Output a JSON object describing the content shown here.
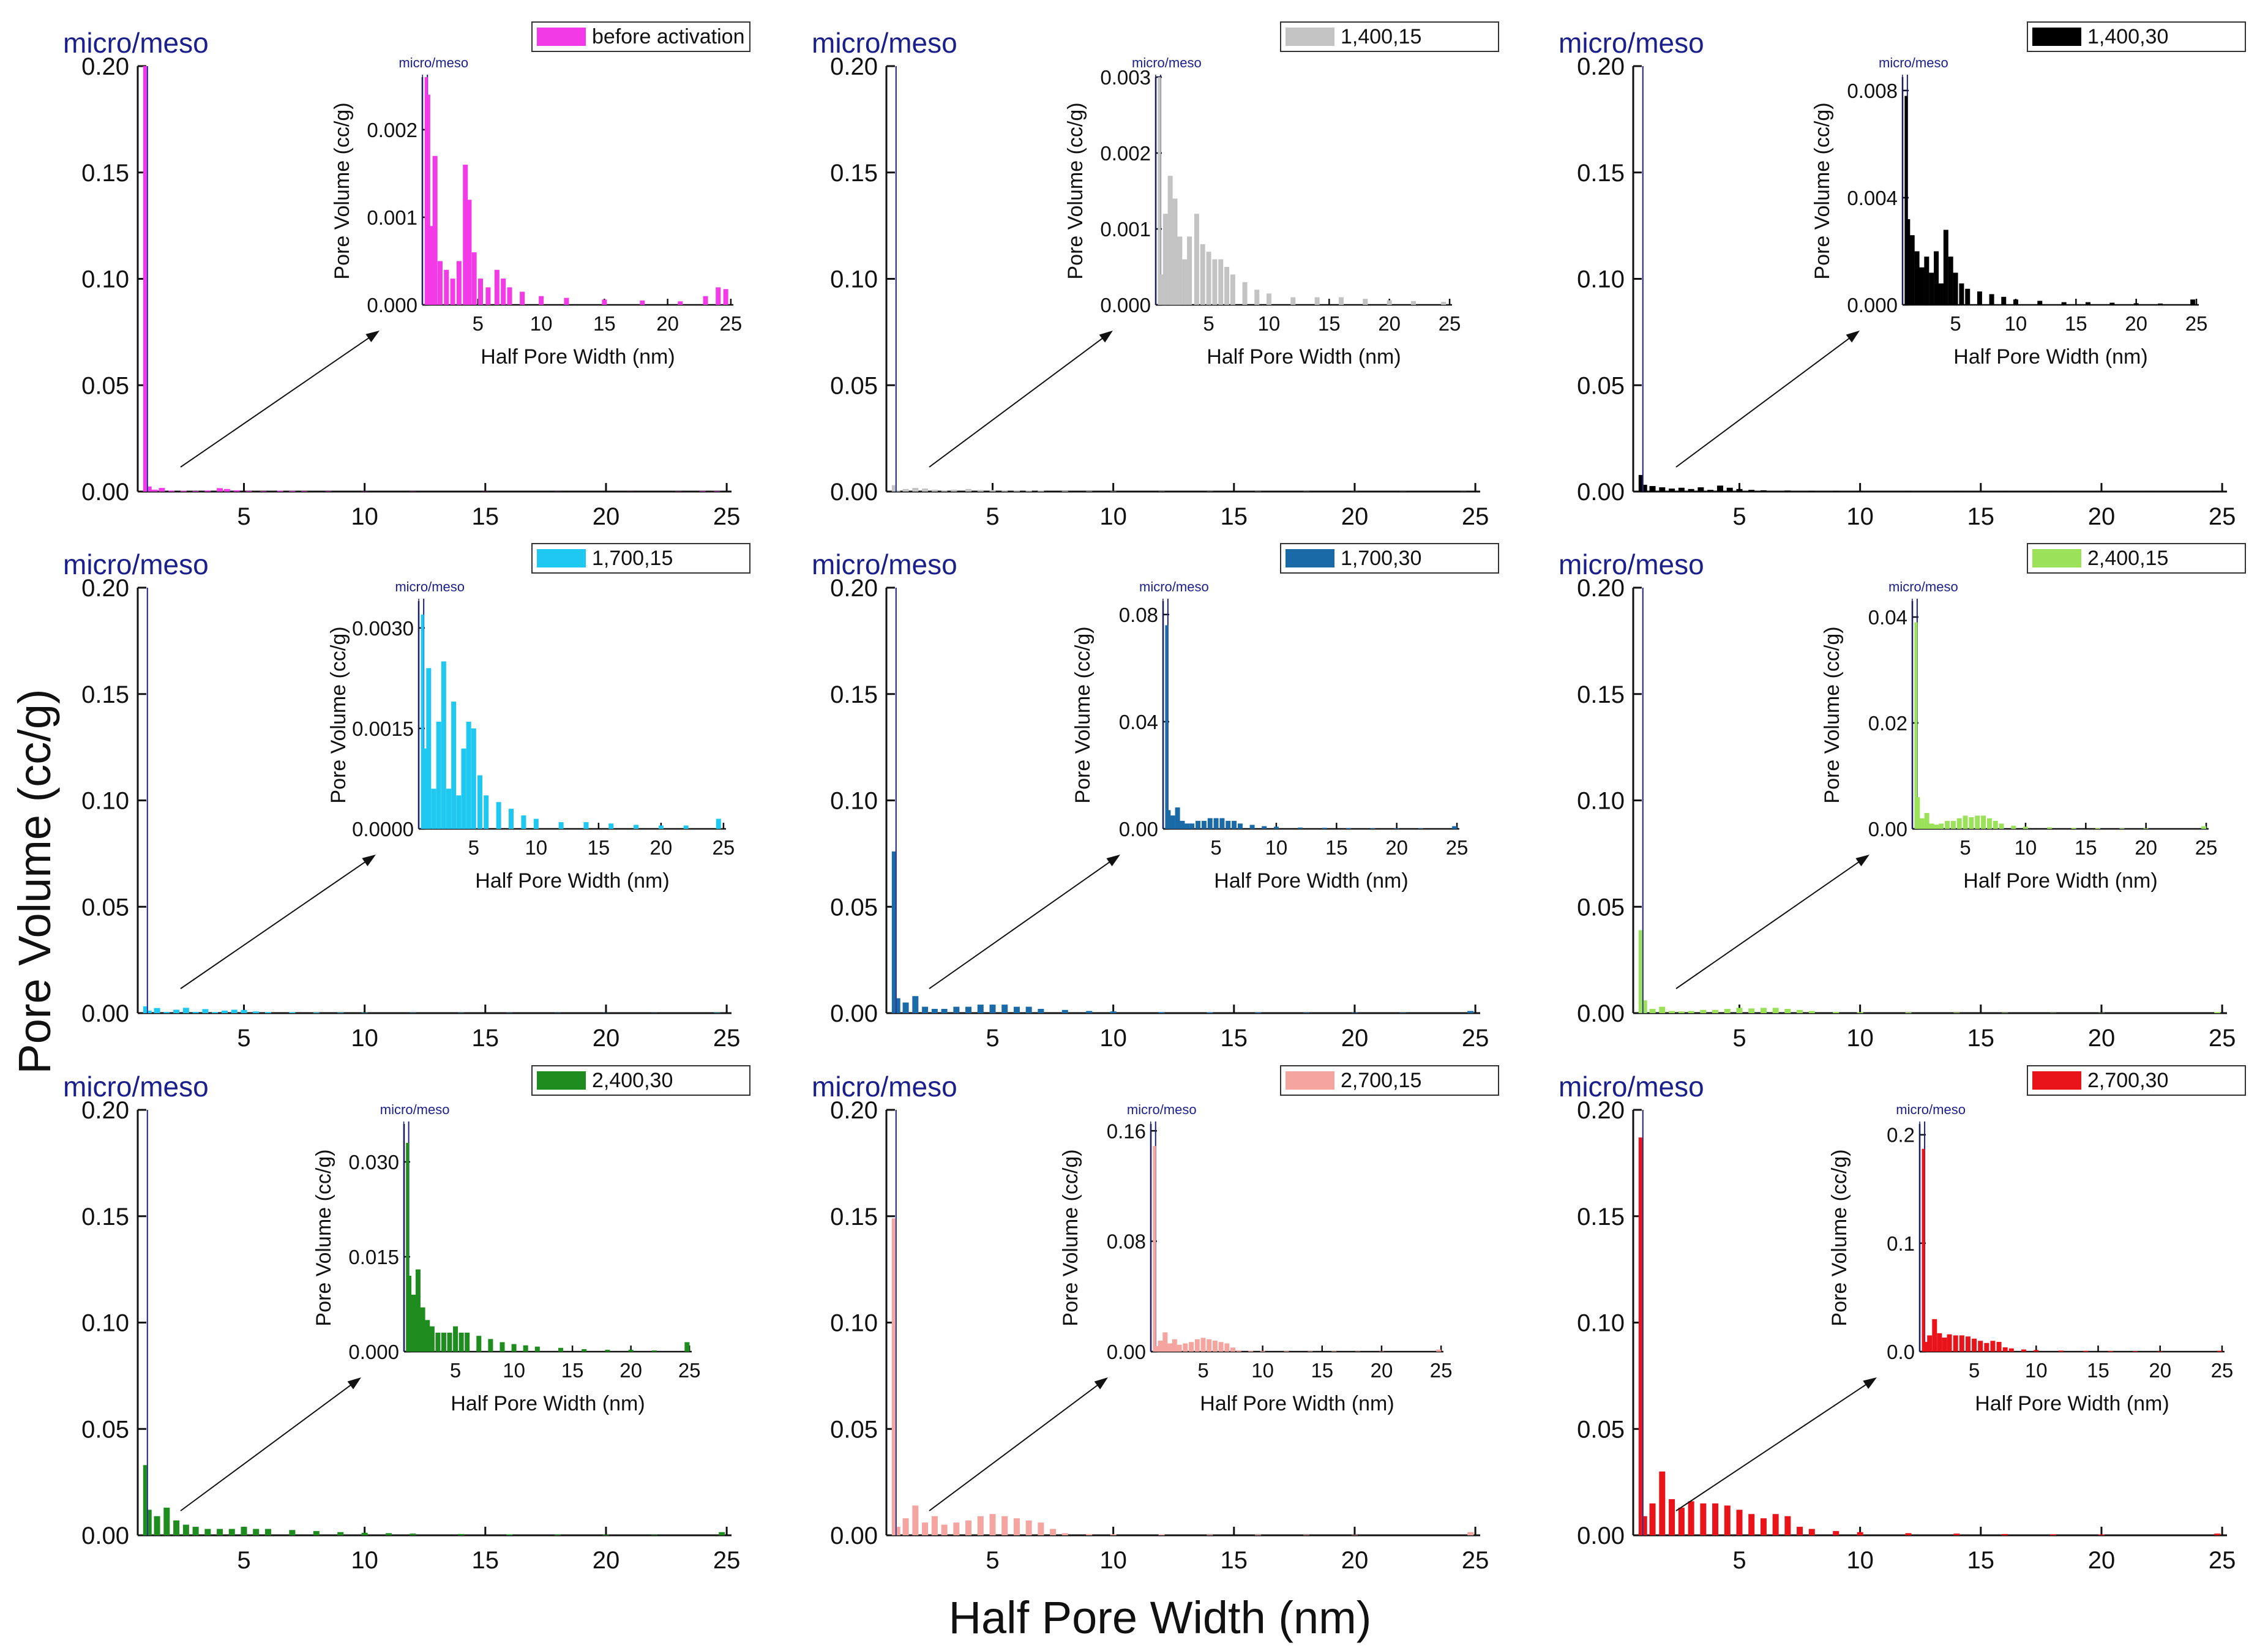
{
  "figure": {
    "ylabel": "Pore Volume (cc/g)",
    "xlabel": "Half Pore Width (nm)",
    "inset_ylabel": "Pore Volume (cc/g)",
    "inset_xlabel": "Half Pore Width (nm)",
    "marker_label": "micro/meso",
    "marker_color": "#1a1f8c",
    "axis_color": "#111111"
  },
  "chart_data": [
    {
      "type": "bar",
      "legend": "before activation",
      "color": "#f23ae6",
      "x": [
        0.9,
        1.1,
        1.3,
        1.6,
        2.0,
        2.5,
        3.0,
        3.5,
        4.0,
        4.3,
        4.7,
        5.2,
        5.8,
        6.5,
        7.0,
        7.5,
        8.5,
        10.0,
        12.0,
        15.0,
        18.0,
        21.0,
        23.0,
        24.0,
        24.6
      ],
      "values": [
        0.2,
        0.0024,
        0.0009,
        0.0017,
        0.0005,
        0.0004,
        0.0003,
        0.0005,
        0.0016,
        0.0012,
        0.0006,
        0.0003,
        0.0002,
        0.0004,
        0.0003,
        0.0002,
        0.00015,
        0.0001,
        8e-05,
        6e-05,
        5e-05,
        4e-05,
        0.0001,
        0.0002,
        0.00018
      ],
      "ylim": [
        0,
        0.2
      ],
      "yticks": [
        "0.00",
        "0.05",
        "0.10",
        "0.15",
        "0.20"
      ],
      "inset": {
        "ylim": [
          0,
          0.0026
        ],
        "yticks": [
          "0.000",
          "0.001",
          "0.002"
        ],
        "ytick_values": [
          0,
          0.001,
          0.002
        ]
      }
    },
    {
      "type": "bar",
      "legend": "1,400,15",
      "color": "#c3c3c3",
      "x": [
        0.9,
        1.1,
        1.4,
        1.8,
        2.2,
        2.6,
        3.0,
        3.4,
        4.0,
        4.5,
        5.0,
        5.5,
        6.0,
        6.5,
        7.0,
        8.0,
        9.0,
        10.0,
        12.0,
        14.0,
        16.0,
        18.0,
        20.0,
        22.0,
        24.5
      ],
      "values": [
        0.003,
        0.0004,
        0.0012,
        0.0017,
        0.0014,
        0.0009,
        0.0006,
        0.0009,
        0.0012,
        0.0008,
        0.0007,
        0.0006,
        0.0006,
        0.0005,
        0.0004,
        0.0003,
        0.0002,
        0.00015,
        0.0001,
        0.0001,
        0.0001,
        8e-05,
        6e-05,
        5e-05,
        4e-05
      ],
      "ylim": [
        0,
        0.2
      ],
      "yticks": [
        "0.00",
        "0.05",
        "0.10",
        "0.15",
        "0.20"
      ],
      "inset": {
        "ylim": [
          0,
          0.003
        ],
        "yticks": [
          "0.000",
          "0.001",
          "0.002",
          "0.003"
        ],
        "ytick_values": [
          0,
          0.001,
          0.002,
          0.003
        ]
      }
    },
    {
      "type": "bar",
      "legend": "1,400,30",
      "color": "#000000",
      "x": [
        0.9,
        1.1,
        1.4,
        1.8,
        2.2,
        2.6,
        3.0,
        3.4,
        3.8,
        4.2,
        4.6,
        5.0,
        5.5,
        6.0,
        7.0,
        8.0,
        9.0,
        10.0,
        12.0,
        14.0,
        16.0,
        18.0,
        20.0,
        22.0,
        24.7
      ],
      "values": [
        0.0078,
        0.0032,
        0.0026,
        0.002,
        0.0014,
        0.0018,
        0.0012,
        0.002,
        0.0008,
        0.0028,
        0.0018,
        0.0012,
        0.0008,
        0.0006,
        0.0005,
        0.0004,
        0.0003,
        0.0002,
        0.00015,
        0.0001,
        0.0001,
        8e-05,
        6e-05,
        5e-05,
        0.0002
      ],
      "ylim": [
        0,
        0.2
      ],
      "yticks": [
        "0.00",
        "0.05",
        "0.10",
        "0.15",
        "0.20"
      ],
      "inset": {
        "ylim": [
          0,
          0.0085
        ],
        "yticks": [
          "0.000",
          "0.004",
          "0.008"
        ],
        "ytick_values": [
          0,
          0.004,
          0.008
        ]
      }
    },
    {
      "type": "bar",
      "legend": "1,700,15",
      "color": "#1ec8f0",
      "x": [
        0.9,
        1.1,
        1.4,
        1.8,
        2.2,
        2.6,
        3.0,
        3.4,
        3.8,
        4.2,
        4.6,
        5.0,
        5.5,
        6.0,
        7.0,
        8.0,
        9.0,
        10.0,
        12.0,
        14.0,
        16.0,
        18.0,
        20.0,
        22.0,
        24.6
      ],
      "values": [
        0.0032,
        0.0012,
        0.0024,
        0.0006,
        0.0016,
        0.0025,
        0.0006,
        0.0019,
        0.0005,
        0.0012,
        0.0016,
        0.0015,
        0.0008,
        0.0005,
        0.0004,
        0.0003,
        0.0002,
        0.00015,
        0.0001,
        0.0001,
        8e-05,
        6e-05,
        5e-05,
        5e-05,
        0.00015
      ],
      "ylim": [
        0,
        0.2
      ],
      "yticks": [
        "0.00",
        "0.05",
        "0.10",
        "0.15",
        "0.20"
      ],
      "inset": {
        "ylim": [
          0,
          0.0034
        ],
        "yticks": [
          "0.0000",
          "0.0015",
          "0.0030"
        ],
        "ytick_values": [
          0,
          0.0015,
          0.003
        ]
      }
    },
    {
      "type": "bar",
      "legend": "1,700,30",
      "color": "#1a6aa8",
      "x": [
        0.9,
        1.1,
        1.4,
        1.8,
        2.2,
        2.6,
        3.0,
        3.5,
        4.0,
        4.5,
        5.0,
        5.5,
        6.0,
        6.5,
        7.0,
        8.0,
        9.0,
        10.0,
        12.0,
        14.0,
        16.0,
        18.0,
        20.0,
        22.0,
        24.8
      ],
      "values": [
        0.076,
        0.007,
        0.005,
        0.008,
        0.003,
        0.002,
        0.002,
        0.003,
        0.003,
        0.004,
        0.004,
        0.004,
        0.003,
        0.003,
        0.002,
        0.0015,
        0.001,
        0.0008,
        0.0005,
        0.0004,
        0.0003,
        0.0002,
        0.0002,
        0.0002,
        0.001
      ],
      "ylim": [
        0,
        0.2
      ],
      "yticks": [
        "0.00",
        "0.05",
        "0.10",
        "0.15",
        "0.20"
      ],
      "inset": {
        "ylim": [
          0,
          0.085
        ],
        "yticks": [
          "0.00",
          "0.04",
          "0.08"
        ],
        "ytick_values": [
          0,
          0.04,
          0.08
        ]
      }
    },
    {
      "type": "bar",
      "legend": "2,400,15",
      "color": "#9be25a",
      "x": [
        0.9,
        1.1,
        1.4,
        1.8,
        2.2,
        2.6,
        3.0,
        3.5,
        4.0,
        4.5,
        5.0,
        5.5,
        6.0,
        6.5,
        7.0,
        7.5,
        8.0,
        9.0,
        10.0,
        12.0,
        14.0,
        16.0,
        18.0,
        20.0,
        24.8
      ],
      "values": [
        0.039,
        0.006,
        0.002,
        0.003,
        0.001,
        0.0008,
        0.001,
        0.0015,
        0.0015,
        0.002,
        0.0025,
        0.0022,
        0.0025,
        0.0025,
        0.002,
        0.0015,
        0.001,
        0.0006,
        0.0004,
        0.0003,
        0.0002,
        0.00015,
        0.0001,
        0.0001,
        0.0005
      ],
      "ylim": [
        0,
        0.2
      ],
      "yticks": [
        "0.00",
        "0.05",
        "0.10",
        "0.15",
        "0.20"
      ],
      "inset": {
        "ylim": [
          0,
          0.043
        ],
        "yticks": [
          "0.00",
          "0.02",
          "0.04"
        ],
        "ytick_values": [
          0,
          0.02,
          0.04
        ]
      }
    },
    {
      "type": "bar",
      "legend": "2,400,30",
      "color": "#1e8c1e",
      "x": [
        0.9,
        1.1,
        1.4,
        1.8,
        2.2,
        2.6,
        3.0,
        3.5,
        4.0,
        4.5,
        5.0,
        5.5,
        6.0,
        7.0,
        8.0,
        9.0,
        10.0,
        11.0,
        12.0,
        14.0,
        16.0,
        18.0,
        20.0,
        22.0,
        24.8
      ],
      "values": [
        0.033,
        0.012,
        0.009,
        0.013,
        0.007,
        0.005,
        0.004,
        0.003,
        0.003,
        0.003,
        0.004,
        0.003,
        0.003,
        0.0025,
        0.002,
        0.0015,
        0.0012,
        0.001,
        0.0008,
        0.0006,
        0.0004,
        0.0003,
        0.0003,
        0.0002,
        0.0015
      ],
      "ylim": [
        0,
        0.2
      ],
      "yticks": [
        "0.00",
        "0.05",
        "0.10",
        "0.15",
        "0.20"
      ],
      "inset": {
        "ylim": [
          0,
          0.036
        ],
        "yticks": [
          "0.000",
          "0.015",
          "0.030"
        ],
        "ytick_values": [
          0,
          0.015,
          0.03
        ]
      }
    },
    {
      "type": "bar",
      "legend": "2,700,15",
      "color": "#f5a5a0",
      "x": [
        0.9,
        1.1,
        1.4,
        1.8,
        2.2,
        2.6,
        3.0,
        3.5,
        4.0,
        4.5,
        5.0,
        5.5,
        6.0,
        6.5,
        7.0,
        7.5,
        8.0,
        9.0,
        10.0,
        12.0,
        14.0,
        16.0,
        18.0,
        20.0,
        24.8
      ],
      "values": [
        0.149,
        0.004,
        0.008,
        0.014,
        0.006,
        0.009,
        0.005,
        0.006,
        0.007,
        0.009,
        0.01,
        0.009,
        0.008,
        0.007,
        0.006,
        0.003,
        0.001,
        0.0006,
        0.0005,
        0.0004,
        0.0003,
        0.0003,
        0.0002,
        0.0002,
        0.0015
      ],
      "ylim": [
        0,
        0.2
      ],
      "yticks": [
        "0.00",
        "0.05",
        "0.10",
        "0.15",
        "0.20"
      ],
      "inset": {
        "ylim": [
          0,
          0.165
        ],
        "yticks": [
          "0.00",
          "0.08",
          "0.16"
        ],
        "ytick_values": [
          0,
          0.08,
          0.16
        ]
      }
    },
    {
      "type": "bar",
      "legend": "2,700,30",
      "color": "#e8141a",
      "x": [
        0.9,
        1.1,
        1.4,
        1.8,
        2.2,
        2.6,
        3.0,
        3.5,
        4.0,
        4.5,
        5.0,
        5.5,
        6.0,
        6.5,
        7.0,
        7.5,
        8.0,
        9.0,
        10.0,
        12.0,
        14.0,
        16.0,
        18.0,
        20.0,
        24.8
      ],
      "values": [
        0.187,
        0.009,
        0.015,
        0.03,
        0.017,
        0.013,
        0.016,
        0.015,
        0.015,
        0.014,
        0.012,
        0.01,
        0.008,
        0.01,
        0.009,
        0.004,
        0.003,
        0.002,
        0.0015,
        0.001,
        0.0008,
        0.0006,
        0.0005,
        0.0004,
        0.0008
      ],
      "ylim": [
        0,
        0.2
      ],
      "yticks": [
        "0.00",
        "0.05",
        "0.10",
        "0.15",
        "0.20"
      ],
      "inset": {
        "ylim": [
          0,
          0.21
        ],
        "yticks": [
          "0.0",
          "0.1",
          "0.2"
        ],
        "ytick_values": [
          0,
          0.1,
          0.2
        ]
      }
    }
  ]
}
